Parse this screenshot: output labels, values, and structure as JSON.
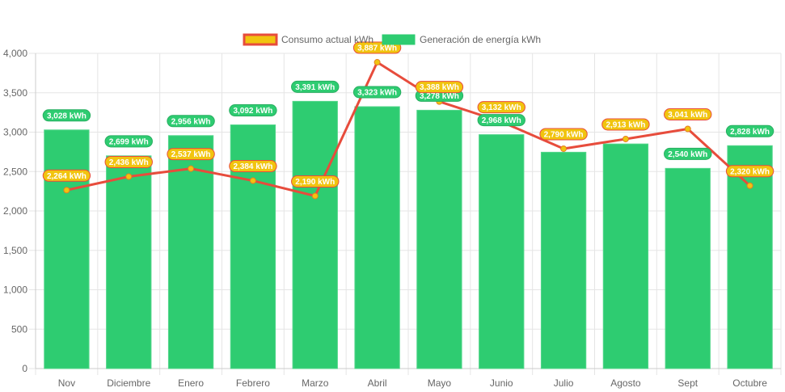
{
  "chart_data": {
    "type": "bar",
    "title": "",
    "xlabel": "",
    "ylabel": "",
    "ylim": [
      0,
      4000
    ],
    "yticks": [
      0,
      500,
      1000,
      1500,
      2000,
      2500,
      3000,
      3500,
      4000
    ],
    "ytick_labels": [
      "0",
      "500",
      "1,000",
      "1,500",
      "2,000",
      "2,500",
      "3,000",
      "3,500",
      "4,000"
    ],
    "grid": true,
    "legend_position": "top-center",
    "categories": [
      "Nov",
      "Diciembre",
      "Enero",
      "Febrero",
      "Marzo",
      "Abril",
      "Mayo",
      "Junio",
      "Julio",
      "Agosto",
      "Sept",
      "Octubre"
    ],
    "series": [
      {
        "name": "Consumo actual kWh",
        "type": "line",
        "color": "#e74c3c",
        "fill_color": "#f1c40f",
        "values": [
          2264,
          2436,
          2537,
          2384,
          2190,
          3887,
          3388,
          3132,
          2790,
          2913,
          3041,
          2320
        ],
        "labels": [
          "2,264 kWh",
          "2,436 kWh",
          "2,537 kWh",
          "2,384 kWh",
          "2,190 kWh",
          "3,887 kWh",
          "3,388 kWh",
          "3,132 kWh",
          "2,790 kWh",
          "2,913 kWh",
          "3,041 kWh",
          "2,320 kWh"
        ]
      },
      {
        "name": "Generación de energía kWh",
        "type": "bar",
        "color": "#2ecc71",
        "values": [
          3028,
          2699,
          2956,
          3092,
          3391,
          3323,
          3278,
          2968,
          2745,
          2850,
          2540,
          2828
        ],
        "labels": [
          "3,028 kWh",
          "2,699 kWh",
          "2,956 kWh",
          "3,092 kWh",
          "3,391 kWh",
          "3,323 kWh",
          "3,278 kWh",
          "2,968 kWh",
          "",
          "",
          "2,540 kWh",
          "2,828 kWh"
        ]
      }
    ]
  }
}
